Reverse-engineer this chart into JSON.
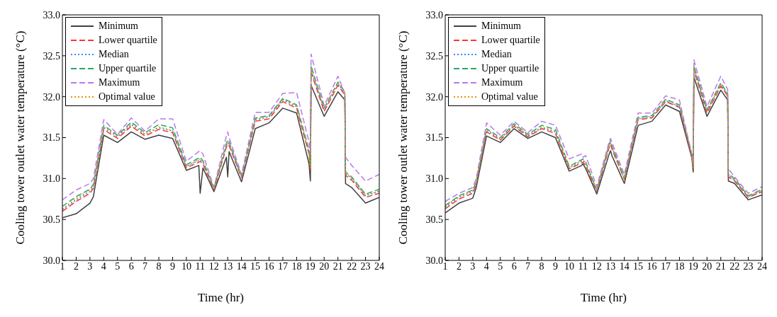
{
  "chart_data": [
    {
      "type": "line",
      "xlabel": "Time (hr)",
      "ylabel": "Cooling tower outlet water temperature (°C)",
      "x": [
        1,
        2,
        3,
        3.25,
        4,
        5,
        6,
        7,
        8,
        9,
        10,
        10.9,
        11,
        11.2,
        12,
        12.9,
        13,
        13.1,
        14,
        15,
        16,
        17,
        18,
        18.9,
        19,
        19.05,
        20,
        21,
        21.5,
        21.55,
        22,
        23,
        24
      ],
      "xlim": [
        1,
        24
      ],
      "xticks": [
        1,
        2,
        3,
        4,
        5,
        6,
        7,
        8,
        9,
        10,
        11,
        12,
        13,
        14,
        15,
        16,
        17,
        18,
        19,
        20,
        21,
        22,
        23,
        24
      ],
      "ylim": [
        30,
        33
      ],
      "yticks": [
        {
          "value": 30,
          "label": "30.0"
        },
        {
          "value": 30.5,
          "label": "30.5"
        },
        {
          "value": 31,
          "label": "31.0"
        },
        {
          "value": 31.5,
          "label": "31.5"
        },
        {
          "value": 32,
          "label": "32.0"
        },
        {
          "value": 32.5,
          "label": "32.5"
        },
        {
          "value": 33,
          "label": "33.0"
        }
      ],
      "legend": "top left",
      "grid": false,
      "marker": "none",
      "series": [
        {
          "name": "Minimum",
          "color": "#404040",
          "line_style": "solid",
          "values": [
            30.52,
            30.57,
            30.7,
            30.78,
            31.53,
            31.44,
            31.57,
            31.48,
            31.53,
            31.49,
            31.1,
            31.16,
            30.82,
            31.13,
            30.84,
            31.26,
            31.02,
            31.33,
            30.96,
            31.61,
            31.68,
            31.86,
            31.8,
            31.18,
            30.97,
            32.14,
            31.76,
            32.06,
            31.96,
            30.94,
            30.89,
            30.7,
            30.77
          ]
        },
        {
          "name": "Lower quartile",
          "color": "#ff3333",
          "line_style": "dashed",
          "values": [
            30.6,
            30.72,
            30.82,
            30.88,
            31.6,
            31.49,
            31.64,
            31.52,
            31.6,
            31.56,
            31.13,
            31.2,
            31.21,
            31.18,
            30.86,
            31.38,
            31.42,
            31.4,
            31.01,
            31.7,
            31.73,
            31.94,
            31.86,
            31.3,
            31.1,
            32.3,
            31.82,
            32.14,
            32.02,
            31.04,
            30.98,
            30.77,
            30.82
          ]
        },
        {
          "name": "Median",
          "color": "#3388ff",
          "line_style": "dotted",
          "values": [
            30.62,
            30.74,
            30.84,
            30.9,
            31.62,
            31.51,
            31.66,
            31.54,
            31.62,
            31.58,
            31.15,
            31.22,
            31.23,
            31.2,
            30.87,
            31.4,
            31.44,
            31.42,
            31.02,
            31.72,
            31.75,
            31.96,
            31.88,
            31.32,
            31.12,
            32.33,
            31.84,
            32.16,
            32.04,
            31.06,
            31.0,
            30.79,
            30.84
          ]
        },
        {
          "name": "Upper quartile",
          "color": "#22aa66",
          "line_style": "dashed",
          "values": [
            30.66,
            30.78,
            30.87,
            30.93,
            31.65,
            31.53,
            31.69,
            31.56,
            31.66,
            31.62,
            31.17,
            31.25,
            31.26,
            31.22,
            30.88,
            31.43,
            31.47,
            31.45,
            31.03,
            31.74,
            31.77,
            31.98,
            31.9,
            31.35,
            31.15,
            32.38,
            31.86,
            32.18,
            32.06,
            31.08,
            31.02,
            30.81,
            30.87
          ]
        },
        {
          "name": "Maximum",
          "color": "#bb77ee",
          "line_style": "dashed",
          "values": [
            30.74,
            30.86,
            30.94,
            31.0,
            31.72,
            31.54,
            31.74,
            31.58,
            31.73,
            31.73,
            31.21,
            31.33,
            31.34,
            31.3,
            30.89,
            31.52,
            31.57,
            31.5,
            31.05,
            31.81,
            31.81,
            32.04,
            32.05,
            31.45,
            31.29,
            32.52,
            31.89,
            32.25,
            32.04,
            31.26,
            31.16,
            30.97,
            31.05
          ]
        },
        {
          "name": "Optimal value",
          "color": "#dd9900",
          "line_style": "dotted",
          "values": [
            30.63,
            30.76,
            30.86,
            30.91,
            31.63,
            31.52,
            31.67,
            31.54,
            31.63,
            31.59,
            31.15,
            31.23,
            31.24,
            31.21,
            30.87,
            31.41,
            31.46,
            31.43,
            31.02,
            31.73,
            31.76,
            31.97,
            31.89,
            31.33,
            31.13,
            32.35,
            31.85,
            32.17,
            32.05,
            31.07,
            31.01,
            30.8,
            30.85
          ]
        }
      ]
    },
    {
      "type": "line",
      "xlabel": "Time (hr)",
      "ylabel": "Cooling tower outlet water temperature (°C)",
      "x": [
        1,
        2,
        3,
        3.25,
        4,
        5,
        6,
        7,
        8,
        9,
        10,
        10.9,
        11,
        11.2,
        12,
        12.9,
        13,
        13.1,
        14,
        15,
        16,
        17,
        18,
        18.9,
        19,
        19.05,
        20,
        21,
        21.5,
        21.55,
        22,
        23,
        24
      ],
      "xlim": [
        1,
        24
      ],
      "xticks": [
        1,
        2,
        3,
        4,
        5,
        6,
        7,
        8,
        9,
        10,
        11,
        12,
        13,
        14,
        15,
        16,
        17,
        18,
        19,
        20,
        21,
        22,
        23,
        24
      ],
      "ylim": [
        30,
        33
      ],
      "yticks": [
        {
          "value": 30,
          "label": "30.0"
        },
        {
          "value": 30.5,
          "label": "30.5"
        },
        {
          "value": 31,
          "label": "31.0"
        },
        {
          "value": 31.5,
          "label": "31.5"
        },
        {
          "value": 32,
          "label": "32.0"
        },
        {
          "value": 32.5,
          "label": "32.5"
        },
        {
          "value": 33,
          "label": "33.0"
        }
      ],
      "legend": "top left",
      "grid": false,
      "marker": "none",
      "series": [
        {
          "name": "Minimum",
          "color": "#404040",
          "line_style": "solid",
          "values": [
            30.58,
            30.7,
            30.76,
            30.89,
            31.52,
            31.44,
            31.61,
            31.49,
            31.57,
            31.5,
            31.09,
            31.16,
            31.18,
            31.12,
            30.81,
            31.3,
            31.34,
            31.28,
            30.94,
            31.65,
            31.7,
            31.9,
            31.82,
            31.25,
            31.08,
            32.24,
            31.76,
            32.08,
            31.96,
            30.97,
            30.94,
            30.74,
            30.8
          ]
        },
        {
          "name": "Lower quartile",
          "color": "#ff3333",
          "line_style": "dashed",
          "values": [
            30.63,
            30.75,
            30.82,
            30.93,
            31.57,
            31.47,
            31.64,
            31.51,
            31.61,
            31.55,
            31.12,
            31.19,
            31.2,
            31.16,
            30.84,
            31.38,
            31.42,
            31.36,
            30.99,
            31.72,
            31.74,
            31.94,
            31.87,
            31.27,
            31.12,
            32.32,
            31.8,
            32.13,
            32.01,
            31.02,
            30.97,
            30.77,
            30.84
          ]
        },
        {
          "name": "Median",
          "color": "#3388ff",
          "line_style": "dotted",
          "values": [
            30.65,
            30.77,
            30.84,
            30.94,
            31.59,
            31.48,
            31.65,
            31.52,
            31.62,
            31.57,
            31.13,
            31.21,
            31.22,
            31.18,
            30.85,
            31.4,
            31.44,
            31.38,
            31.0,
            31.73,
            31.75,
            31.95,
            31.88,
            31.28,
            31.13,
            32.35,
            31.82,
            32.15,
            32.02,
            31.04,
            30.98,
            30.78,
            30.85
          ]
        },
        {
          "name": "Upper quartile",
          "color": "#22aa66",
          "line_style": "dashed",
          "values": [
            30.67,
            30.79,
            30.86,
            30.96,
            31.61,
            31.5,
            31.67,
            31.54,
            31.65,
            31.6,
            31.15,
            31.23,
            31.24,
            31.2,
            30.86,
            31.42,
            31.46,
            31.4,
            31.01,
            31.75,
            31.77,
            31.97,
            31.9,
            31.3,
            31.15,
            32.38,
            31.84,
            32.17,
            32.04,
            31.06,
            31.0,
            30.79,
            30.87
          ]
        },
        {
          "name": "Maximum",
          "color": "#bb77ee",
          "line_style": "dashed",
          "values": [
            30.72,
            30.82,
            30.89,
            31.0,
            31.68,
            31.53,
            31.7,
            31.56,
            31.7,
            31.65,
            31.24,
            31.3,
            31.26,
            31.28,
            30.9,
            31.45,
            31.49,
            31.44,
            31.05,
            31.8,
            31.8,
            32.01,
            31.96,
            31.29,
            31.18,
            32.45,
            31.88,
            32.25,
            32.09,
            31.12,
            31.02,
            30.82,
            30.9
          ]
        },
        {
          "name": "Optimal value",
          "color": "#dd9900",
          "line_style": "dotted",
          "values": [
            30.66,
            30.78,
            30.85,
            30.95,
            31.6,
            31.49,
            31.66,
            31.53,
            31.63,
            31.58,
            31.14,
            31.22,
            31.23,
            31.19,
            30.86,
            31.41,
            31.45,
            31.39,
            31.0,
            31.74,
            31.76,
            31.96,
            31.89,
            31.29,
            31.14,
            32.36,
            31.83,
            32.16,
            32.03,
            31.05,
            30.99,
            30.78,
            30.86
          ]
        }
      ]
    }
  ]
}
